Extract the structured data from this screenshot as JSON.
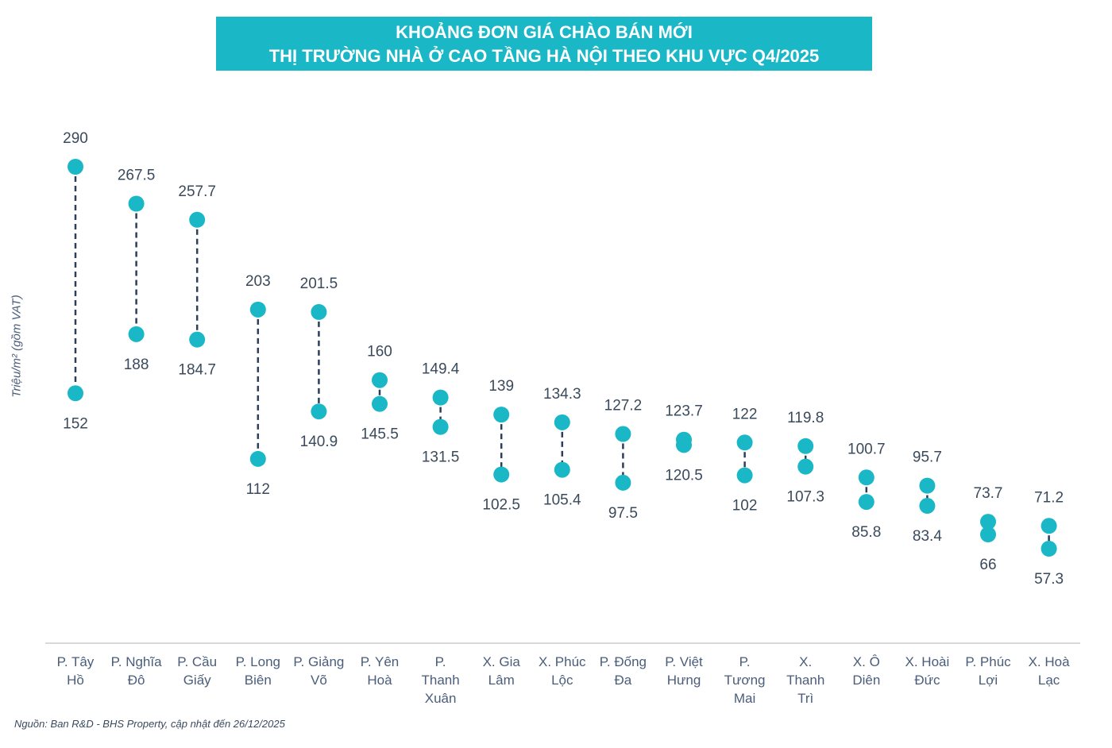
{
  "chart_data": {
    "type": "range-dot",
    "title": [
      "KHOẢNG ĐƠN GIÁ CHÀO BÁN MỚI",
      "THỊ TRƯỜNG NHÀ Ở CAO TẦNG HÀ NỘI THEO KHU VỰC Q4/2025"
    ],
    "ylabel": "Triệu/m² (gồm VAT)",
    "source": "Nguồn: Ban R&D - BHS Property, cập nhật đến 26/12/2025",
    "ylim": [
      50,
      300
    ],
    "categories": [
      [
        "P. Tây",
        "Hồ"
      ],
      [
        "P. Nghĩa",
        "Đô"
      ],
      [
        "P. Cầu",
        "Giấy"
      ],
      [
        "P. Long",
        "Biên"
      ],
      [
        "P. Giảng",
        "Võ"
      ],
      [
        "P. Yên",
        "Hoà"
      ],
      [
        "P.",
        "Thanh",
        "Xuân"
      ],
      [
        "X. Gia",
        "Lâm"
      ],
      [
        "X. Phúc",
        "Lộc"
      ],
      [
        "P. Đống",
        "Đa"
      ],
      [
        "P. Việt",
        "Hưng"
      ],
      [
        "P.",
        "Tương",
        "Mai"
      ],
      [
        "X.",
        "Thanh",
        "Trì"
      ],
      [
        "X. Ô",
        "Diên"
      ],
      [
        "X. Hoài",
        "Đức"
      ],
      [
        "P. Phúc",
        "Lợi"
      ],
      [
        "X. Hoà",
        "Lạc"
      ]
    ],
    "series": [
      {
        "name": "max",
        "values": [
          290,
          267.5,
          257.7,
          203,
          201.5,
          160,
          149.4,
          139,
          134.3,
          127.2,
          123.7,
          122,
          119.8,
          100.7,
          95.7,
          73.7,
          71.2
        ]
      },
      {
        "name": "min",
        "values": [
          152,
          188,
          184.7,
          112,
          140.9,
          145.5,
          131.5,
          102.5,
          105.4,
          97.5,
          120.5,
          102,
          107.3,
          85.8,
          83.4,
          66,
          57.3
        ]
      }
    ],
    "max_labels": [
      "290",
      "267.5",
      "257.7",
      "203",
      "201.5",
      "160",
      "149.4",
      "139",
      "134.3",
      "127.2",
      "123.7",
      "122",
      "119.8",
      "100.7",
      "95.7",
      "73.7",
      "71.2"
    ],
    "min_labels": [
      "152",
      "188",
      "184.7",
      "112",
      "140.9",
      "145.5",
      "131.5",
      "102.5",
      "105.4",
      "97.5",
      "120.5",
      "102",
      "107.3",
      "85.8",
      "83.4",
      "66",
      "57.3"
    ],
    "colors": {
      "dot": "#1ab8c6",
      "line": "#2c3e5a",
      "axis": "#d9d9d9",
      "title_bg": "#1ab8c6"
    }
  }
}
